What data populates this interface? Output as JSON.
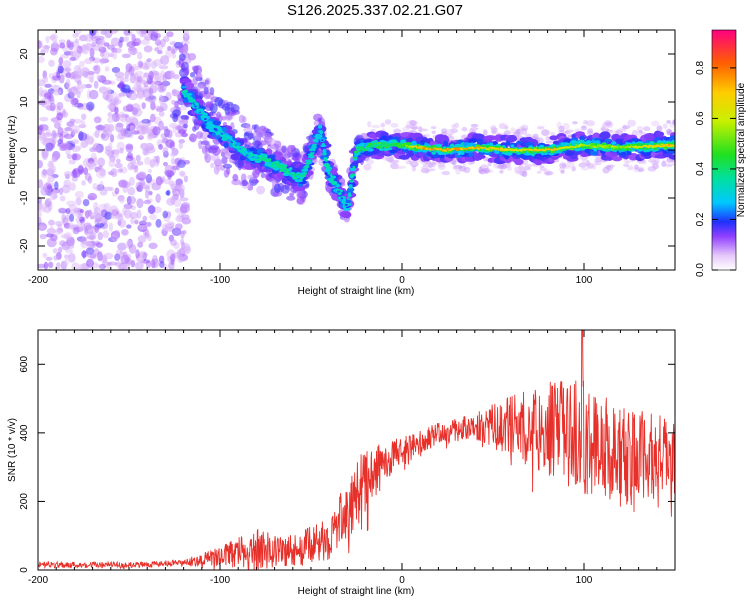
{
  "title": "S126.2025.337.02.21.G07",
  "chart_data": [
    {
      "type": "heatmap",
      "title": "S126.2025.337.02.21.G07",
      "xlabel": "Height of straight line (km)",
      "ylabel": "Frequency (Hz)",
      "xlim": [
        -200,
        150
      ],
      "ylim": [
        -25,
        25
      ],
      "xticks": [
        -200,
        -100,
        0,
        100
      ],
      "yticks": [
        -20,
        -10,
        0,
        10,
        20
      ],
      "ridge": [
        {
          "x": -115,
          "f": 10,
          "a": 0.25
        },
        {
          "x": -105,
          "f": 5,
          "a": 0.2
        },
        {
          "x": -95,
          "f": 2,
          "a": 0.25
        },
        {
          "x": -85,
          "f": -1,
          "a": 0.25
        },
        {
          "x": -75,
          "f": -2,
          "a": 0.3
        },
        {
          "x": -65,
          "f": -4,
          "a": 0.3
        },
        {
          "x": -55,
          "f": -6,
          "a": 0.3
        },
        {
          "x": -45,
          "f": 4,
          "a": 0.2
        },
        {
          "x": -40,
          "f": -5,
          "a": 0.3
        },
        {
          "x": -30,
          "f": -12,
          "a": 0.2
        },
        {
          "x": -25,
          "f": 0,
          "a": 0.35
        },
        {
          "x": -15,
          "f": 1,
          "a": 0.4
        },
        {
          "x": 0,
          "f": 1,
          "a": 0.5
        },
        {
          "x": 10,
          "f": 0.5,
          "a": 0.8
        },
        {
          "x": 25,
          "f": 0,
          "a": 0.8
        },
        {
          "x": 40,
          "f": 0.5,
          "a": 0.8
        },
        {
          "x": 60,
          "f": 0,
          "a": 0.7
        },
        {
          "x": 80,
          "f": 0,
          "a": 0.8
        },
        {
          "x": 100,
          "f": 1,
          "a": 0.6
        },
        {
          "x": 120,
          "f": 0.5,
          "a": 0.6
        },
        {
          "x": 150,
          "f": 1,
          "a": 0.8
        }
      ],
      "colorbar": {
        "label": "Normalized spectral amplitude",
        "range": [
          0.0,
          0.95
        ],
        "ticks": [
          0.0,
          0.2,
          0.4,
          0.6,
          0.8
        ],
        "ticklabels": [
          "0.0",
          "0.2",
          "0.4",
          "0.6",
          "0.8"
        ]
      }
    },
    {
      "type": "line",
      "xlabel": "Height of straight line (km)",
      "ylabel": "SNR (10 * v/v)",
      "xlim": [
        -200,
        150
      ],
      "ylim": [
        0,
        700
      ],
      "xticks": [
        -200,
        -100,
        0,
        100
      ],
      "yticks": [
        0,
        200,
        400,
        600
      ],
      "color": "#e8302a",
      "envelope": [
        {
          "x": -200,
          "mean": 15,
          "spread": 10
        },
        {
          "x": -150,
          "mean": 15,
          "spread": 8
        },
        {
          "x": -120,
          "mean": 20,
          "spread": 10
        },
        {
          "x": -100,
          "mean": 40,
          "spread": 30
        },
        {
          "x": -80,
          "mean": 60,
          "spread": 60
        },
        {
          "x": -60,
          "mean": 55,
          "spread": 50
        },
        {
          "x": -40,
          "mean": 90,
          "spread": 60
        },
        {
          "x": -30,
          "mean": 180,
          "spread": 90
        },
        {
          "x": -20,
          "mean": 260,
          "spread": 100
        },
        {
          "x": -10,
          "mean": 310,
          "spread": 60
        },
        {
          "x": 0,
          "mean": 350,
          "spread": 40
        },
        {
          "x": 20,
          "mean": 400,
          "spread": 30
        },
        {
          "x": 40,
          "mean": 420,
          "spread": 40
        },
        {
          "x": 60,
          "mean": 420,
          "spread": 90
        },
        {
          "x": 80,
          "mean": 410,
          "spread": 140
        },
        {
          "x": 100,
          "mean": 390,
          "spread": 170
        },
        {
          "x": 120,
          "mean": 330,
          "spread": 150
        },
        {
          "x": 150,
          "mean": 330,
          "spread": 110
        }
      ],
      "peak": {
        "x": 99,
        "y": 700
      }
    }
  ]
}
